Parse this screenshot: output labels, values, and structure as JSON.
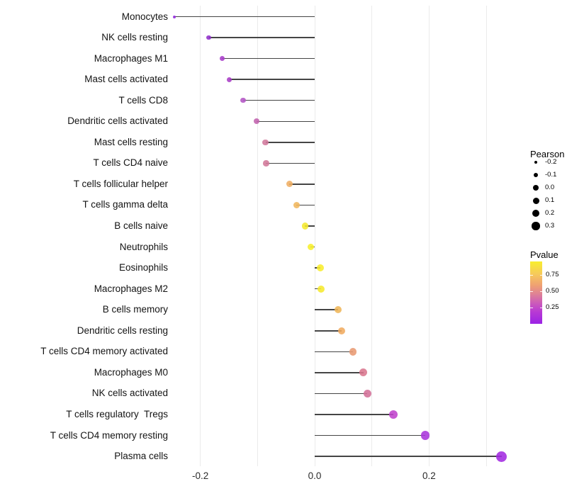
{
  "chart_data": {
    "type": "lollipop",
    "orientation": "horizontal",
    "title": "",
    "xlabel": "",
    "ylabel": "",
    "grid": "vertical-only",
    "legend_position": "right",
    "x_axis": {
      "range": [
        -0.27,
        0.37
      ],
      "ticks": [
        {
          "label": "-0.2",
          "value": -0.2
        },
        {
          "label": "0.0",
          "value": 0.0
        },
        {
          "label": "0.2",
          "value": 0.2
        }
      ],
      "gridline_values": [
        -0.2,
        -0.1,
        0.0,
        0.1,
        0.2,
        0.3
      ]
    },
    "points": [
      {
        "label": "Monocytes",
        "pearson": -0.245,
        "pvalue_approx": 0.05,
        "color": "#9229DE",
        "d": 4
      },
      {
        "label": "NK cells resting",
        "pearson": -0.185,
        "pvalue_approx": 0.13,
        "color": "#8F2FC9",
        "d": 6.5
      },
      {
        "label": "Macrophages M1",
        "pearson": -0.162,
        "pvalue_approx": 0.18,
        "color": "#A83CCB",
        "d": 7
      },
      {
        "label": "Mast cells activated",
        "pearson": -0.149,
        "pvalue_approx": 0.19,
        "color": "#A93CC6",
        "d": 7
      },
      {
        "label": "T cells CD8",
        "pearson": -0.125,
        "pvalue_approx": 0.27,
        "color": "#B355C5",
        "d": 7.5
      },
      {
        "label": "Dendritic cells activated",
        "pearson": -0.101,
        "pvalue_approx": 0.37,
        "color": "#C163AE",
        "d": 8
      },
      {
        "label": "Mast cells resting",
        "pearson": -0.086,
        "pvalue_approx": 0.45,
        "color": "#D1799C",
        "d": 8.5
      },
      {
        "label": "T cells CD4 naive",
        "pearson": -0.085,
        "pvalue_approx": 0.46,
        "color": "#D27898",
        "d": 8.5
      },
      {
        "label": "T cells follicular helper",
        "pearson": -0.044,
        "pvalue_approx": 0.62,
        "color": "#EFAE63",
        "d": 9
      },
      {
        "label": "T cells gamma delta",
        "pearson": -0.032,
        "pvalue_approx": 0.65,
        "color": "#F0B65C",
        "d": 9
      },
      {
        "label": "B cells naive",
        "pearson": -0.017,
        "pvalue_approx": 0.85,
        "color": "#F5E92F",
        "d": 9.5
      },
      {
        "label": "Neutrophils",
        "pearson": -0.007,
        "pvalue_approx": 0.9,
        "color": "#F7EF2B",
        "d": 9.5
      },
      {
        "label": "Eosinophils",
        "pearson": 0.01,
        "pvalue_approx": 0.88,
        "color": "#F8ED2C",
        "d": 10
      },
      {
        "label": "Macrophages M2",
        "pearson": 0.011,
        "pvalue_approx": 0.87,
        "color": "#F6E92E",
        "d": 10
      },
      {
        "label": "B cells memory",
        "pearson": 0.041,
        "pvalue_approx": 0.66,
        "color": "#EFB659",
        "d": 10
      },
      {
        "label": "Dendritic cells resting",
        "pearson": 0.047,
        "pvalue_approx": 0.64,
        "color": "#F0AB60",
        "d": 10.5
      },
      {
        "label": "T cells CD4 memory activated",
        "pearson": 0.067,
        "pvalue_approx": 0.58,
        "color": "#E89A72",
        "d": 10.5
      },
      {
        "label": "Macrophages M0",
        "pearson": 0.085,
        "pvalue_approx": 0.47,
        "color": "#D9768E",
        "d": 11
      },
      {
        "label": "NK cells activated",
        "pearson": 0.092,
        "pvalue_approx": 0.45,
        "color": "#D36F97",
        "d": 11
      },
      {
        "label": "T cells regulatory  Tregs",
        "pearson": 0.137,
        "pvalue_approx": 0.22,
        "color": "#BF42CC",
        "d": 12
      },
      {
        "label": "T cells CD4 memory resting",
        "pearson": 0.193,
        "pvalue_approx": 0.12,
        "color": "#A935DB",
        "d": 12.5
      },
      {
        "label": "Plasma cells",
        "pearson": 0.327,
        "pvalue_approx": 0.05,
        "color": "#A32AE1",
        "d": 15
      }
    ],
    "legend_size": {
      "title": "Pearson",
      "entries": [
        {
          "label": "-0.2",
          "d": 4.5
        },
        {
          "label": "-0.1",
          "d": 6.5
        },
        {
          "label": "0.0",
          "d": 8
        },
        {
          "label": "0.1",
          "d": 9
        },
        {
          "label": "0.2",
          "d": 10
        },
        {
          "label": "0.3",
          "d": 11.5
        }
      ]
    },
    "legend_color": {
      "title": "Pvalue",
      "range": [
        0,
        0.95
      ],
      "ticks": [
        {
          "label": "0.75",
          "value": 0.75
        },
        {
          "label": "0.50",
          "value": 0.5
        },
        {
          "label": "0.25",
          "value": 0.25
        }
      ],
      "gradient_stops": [
        {
          "color": "#F8EE2E",
          "pos": 0
        },
        {
          "color": "#F6CA5B",
          "pos": 20
        },
        {
          "color": "#EFA172",
          "pos": 38
        },
        {
          "color": "#DF8295",
          "pos": 52
        },
        {
          "color": "#CD5DB8",
          "pos": 66
        },
        {
          "color": "#B93BD3",
          "pos": 80
        },
        {
          "color": "#9B22E5",
          "pos": 100
        }
      ]
    }
  }
}
